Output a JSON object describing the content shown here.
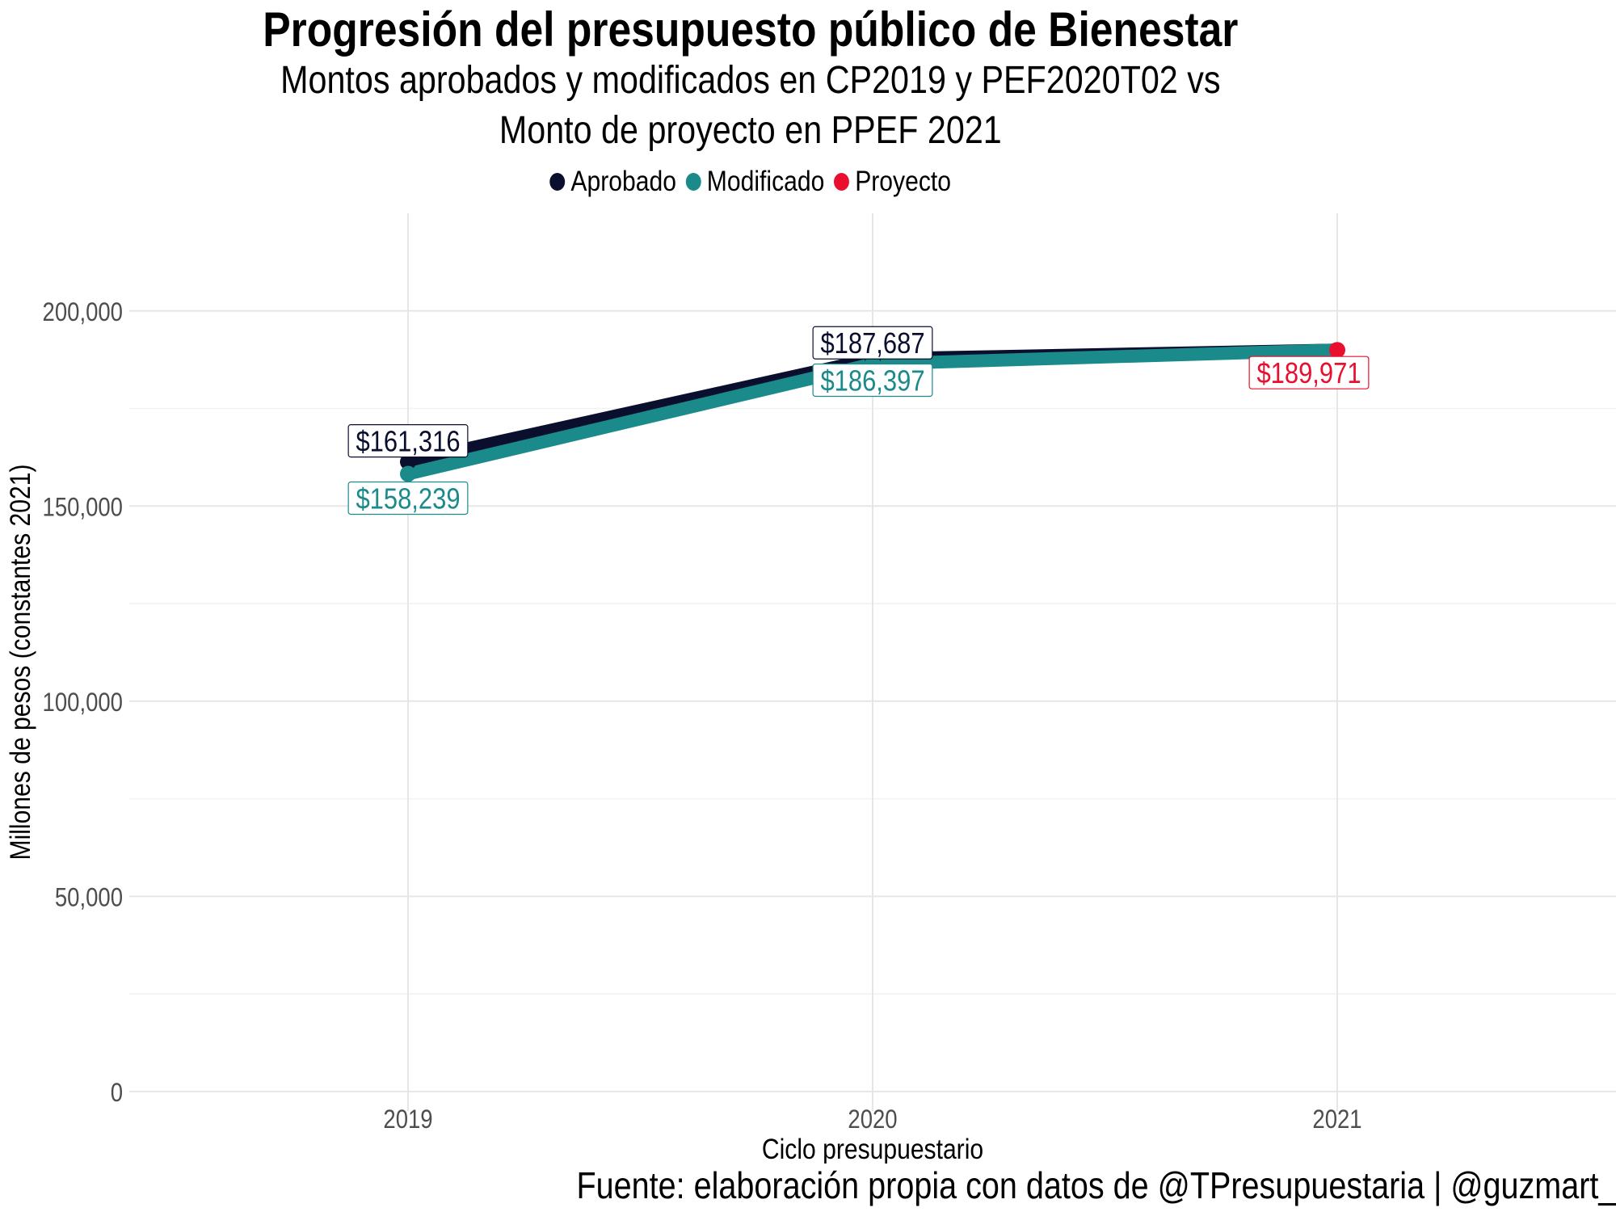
{
  "chart_data": {
    "type": "line",
    "title": "Progresión del presupuesto público de Bienestar",
    "subtitle_lines": [
      "Montos aprobados y modificados en CP2019 y PEF2020T02 vs",
      "Monto de proyecto en PPEF 2021"
    ],
    "xlabel": "Ciclo presupuestario",
    "ylabel": "Millones de pesos (constantes 2021)",
    "caption": "Fuente: elaboración propia con datos de @TPresupuestaria | @guzmart_",
    "x": [
      "2019",
      "2020",
      "2021"
    ],
    "xlim": [
      2018.4,
      2021.6
    ],
    "ylim": [
      -5000,
      225000
    ],
    "y_ticks": [
      0,
      50000,
      100000,
      150000,
      200000
    ],
    "y_tick_labels": [
      "0",
      "50,000",
      "100,000",
      "150,000",
      "200,000"
    ],
    "grid": true,
    "legend_position": "top",
    "series": [
      {
        "name": "Aprobado",
        "color": "#0b0f2e",
        "x": [
          2019,
          2020,
          2021
        ],
        "values": [
          161316,
          187687,
          189971
        ],
        "labels": [
          "$161,316",
          "$187,687"
        ]
      },
      {
        "name": "Modificado",
        "color": "#1b8a8a",
        "x": [
          2019,
          2020,
          2021
        ],
        "values": [
          158239,
          186397,
          189971
        ],
        "labels": [
          "$158,239",
          "$186,397"
        ]
      },
      {
        "name": "Proyecto",
        "color": "#e8102e",
        "x": [
          2021
        ],
        "values": [
          189971
        ],
        "labels": [
          "$189,971"
        ]
      }
    ]
  }
}
